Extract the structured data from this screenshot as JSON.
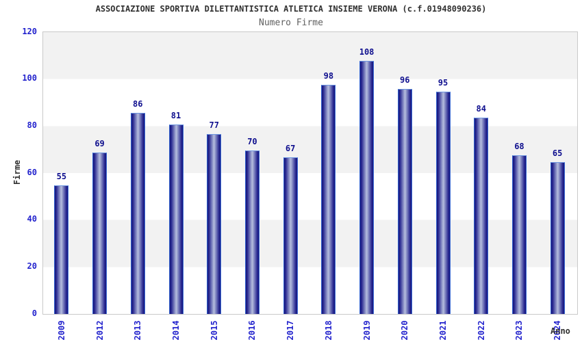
{
  "chart_data": {
    "type": "bar",
    "title": "ASSOCIAZIONE SPORTIVA DILETTANTISTICA ATLETICA INSIEME VERONA (c.f.01948090236)",
    "subtitle": "Numero Firme",
    "xlabel": "Anno",
    "ylabel": "Firme",
    "categories": [
      "2009",
      "2012",
      "2013",
      "2014",
      "2015",
      "2016",
      "2017",
      "2018",
      "2019",
      "2020",
      "2021",
      "2022",
      "2023",
      "2024"
    ],
    "values": [
      55,
      69,
      86,
      81,
      77,
      70,
      67,
      98,
      108,
      96,
      95,
      84,
      68,
      65
    ],
    "ylim": [
      0,
      120
    ],
    "yticks": [
      0,
      20,
      40,
      60,
      80,
      100,
      120
    ],
    "grid": "alternating-horizontal-bands",
    "legend_position": "none",
    "colors": {
      "background": "#ffffff",
      "band_light": "#ffffff",
      "band_gray": "#f2f2f2",
      "plot_border": "#c9c9c9",
      "bar_edge_dark": "#15157a",
      "bar_mid": "#2a2a92",
      "bar_center_light": "#b6bede",
      "bar_border": "#3566d2",
      "bar_top_cap": "#6d96e0",
      "tick_label": "#2323cd",
      "value_label": "#0f0f8e",
      "title": "#303030",
      "subtitle": "#606060",
      "axis_title": "#303030"
    }
  }
}
